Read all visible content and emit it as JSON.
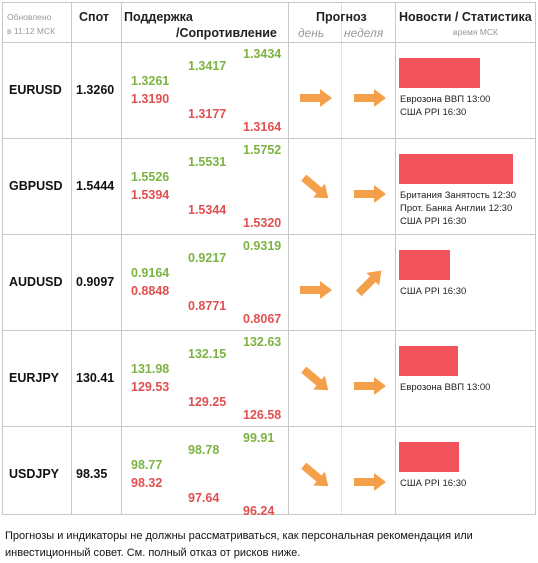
{
  "header": {
    "updated": "Обновлено",
    "updated_time": "в 11:12 МСК",
    "spot": "Спот",
    "support": "Поддержка",
    "resistance": "/Сопротивление",
    "forecast": "Прогноз",
    "day": "день",
    "week": "неделя",
    "news": "Новости / Статистика",
    "news_time": "время МСК"
  },
  "rows": [
    {
      "pair": "EURUSD",
      "spot": "1.3260",
      "c1_green": "1.3261",
      "c1_red": "1.3190",
      "c2_green": "1.3417",
      "c2_red": "1.3177",
      "c3_green": "1.3434",
      "c3_red": "1.3164",
      "day": "right",
      "week": "right",
      "bar": 0.62,
      "news": [
        "Еврозона ВВП 13:00",
        "США PPI 16:30"
      ]
    },
    {
      "pair": "GBPUSD",
      "spot": "1.5444",
      "c1_green": "1.5526",
      "c1_red": "1.5394",
      "c2_green": "1.5531",
      "c2_red": "1.5344",
      "c3_green": "1.5752",
      "c3_red": "1.5320",
      "day": "down-right",
      "week": "right",
      "bar": 0.88,
      "news": [
        "Британия Занятость 12:30",
        "Прот. Банка Англии 12:30",
        "США PPI 16:30"
      ]
    },
    {
      "pair": "AUDUSD",
      "spot": "0.9097",
      "c1_green": "0.9164",
      "c1_red": "0.8848",
      "c2_green": "0.9217",
      "c2_red": "0.8771",
      "c3_green": "0.9319",
      "c3_red": "0.8067",
      "day": "right",
      "week": "up-right",
      "bar": 0.39,
      "news": [
        "США PPI 16:30"
      ]
    },
    {
      "pair": "EURJPY",
      "spot": "130.41",
      "c1_green": "131.98",
      "c1_red": "129.53",
      "c2_green": "132.15",
      "c2_red": "129.25",
      "c3_green": "132.63",
      "c3_red": "126.58",
      "day": "down-right",
      "week": "right",
      "bar": 0.45,
      "news": [
        "Еврозона ВВП 13:00"
      ]
    },
    {
      "pair": "USDJPY",
      "spot": "98.35",
      "c1_green": "98.77",
      "c1_red": "98.32",
      "c2_green": "98.78",
      "c2_red": "97.64",
      "c3_green": "99.91",
      "c3_red": "96.24",
      "day": "down-right",
      "week": "right",
      "bar": 0.46,
      "news": [
        "США PPI 16:30"
      ]
    }
  ],
  "disclaimer": "Прогнозы и индикаторы не должны рассматриваться, как персональная рекомендация или инвестиционный совет. См. полный отказ от рисков ниже.",
  "colors": {
    "up": "#7cb342",
    "down": "#e05050",
    "arrow": "#f4a04a",
    "bar": "#f0535a",
    "grid": "#c8c8c8"
  }
}
